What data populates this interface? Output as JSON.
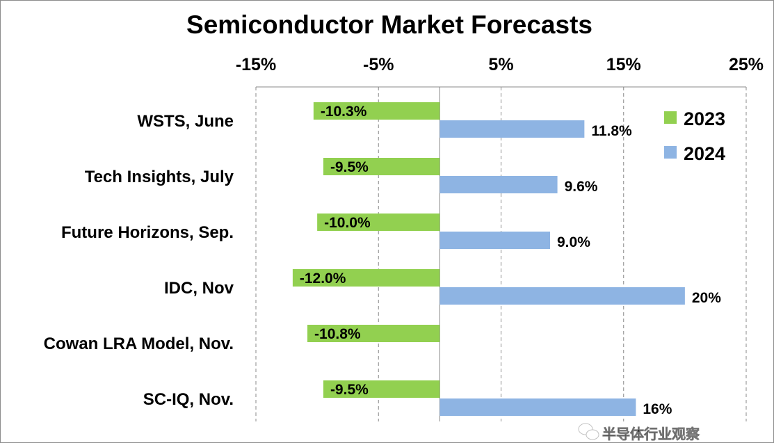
{
  "chart_data": {
    "type": "bar",
    "orientation": "horizontal",
    "title": "Semiconductor Market Forecasts",
    "categories": [
      "WSTS, June",
      "Tech Insights, July",
      "Future Horizons, Sep.",
      "IDC, Nov",
      "Cowan LRA Model, Nov.",
      "SC-IQ, Nov."
    ],
    "series": [
      {
        "name": "2023",
        "color": "#92d050",
        "values": [
          -10.3,
          -9.5,
          -10.0,
          -12.0,
          -10.8,
          -9.5
        ],
        "labels": [
          "-10.3%",
          "-9.5%",
          "-10.0%",
          "-12.0%",
          "-10.8%",
          "-9.5%"
        ]
      },
      {
        "name": "2024",
        "color": "#8eb4e3",
        "values": [
          11.8,
          9.6,
          9.0,
          20,
          null,
          16
        ],
        "labels": [
          "11.8%",
          "9.6%",
          "9.0%",
          "20%",
          "",
          "16%"
        ]
      }
    ],
    "xlim": [
      -15,
      25
    ],
    "xticks": [
      "-15%",
      "-5%",
      "5%",
      "15%",
      "25%"
    ],
    "xtick_values": [
      -15,
      -5,
      5,
      15,
      25
    ],
    "xaxis_position": "top",
    "grid": "vertical dashed",
    "legend_position": "top-right"
  },
  "watermark": "半导体行业观察"
}
